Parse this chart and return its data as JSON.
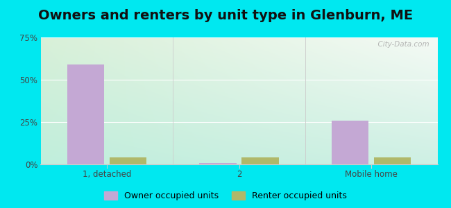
{
  "title": "Owners and renters by unit type in Glenburn, ME",
  "categories": [
    "1, detached",
    "2",
    "Mobile home"
  ],
  "owner_values": [
    59,
    1,
    26
  ],
  "renter_values": [
    4,
    4,
    4
  ],
  "owner_color": "#c4a8d4",
  "renter_color": "#b0b86a",
  "ylim": [
    0,
    75
  ],
  "yticks": [
    0,
    25,
    50,
    75
  ],
  "yticklabels": [
    "0%",
    "25%",
    "50%",
    "75%"
  ],
  "bar_width": 0.28,
  "bg_topleft": "#d8f0d8",
  "bg_topright": "#eaf5ea",
  "bg_bottomleft": "#c8ede0",
  "bg_bottomright": "#d5f0e8",
  "outer_bg": "#00e8f0",
  "watermark": "  City-Data.com",
  "title_fontsize": 14,
  "legend_fontsize": 9,
  "tick_fontsize": 8.5
}
